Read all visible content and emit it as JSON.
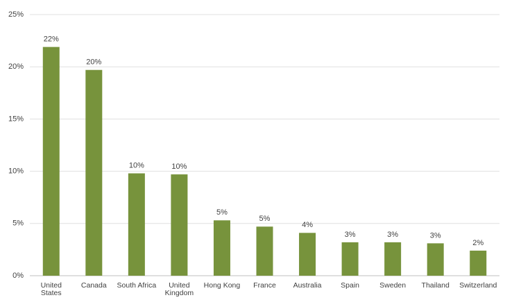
{
  "chart_data": {
    "type": "bar",
    "categories": [
      "United States",
      "Canada",
      "South Africa",
      "United Kingdom",
      "Hong Kong",
      "France",
      "Australia",
      "Spain",
      "Sweden",
      "Thailand",
      "Switzerland"
    ],
    "values": [
      21.9,
      19.7,
      9.8,
      9.7,
      5.3,
      4.7,
      4.1,
      3.2,
      3.2,
      3.1,
      2.4
    ],
    "value_labels": [
      "22%",
      "20%",
      "10%",
      "10%",
      "5%",
      "5%",
      "4%",
      "3%",
      "3%",
      "3%",
      "2%"
    ],
    "color": "#77933c",
    "ylim": [
      0,
      25
    ],
    "yticks": [
      {
        "value": 0,
        "label": "0%"
      },
      {
        "value": 5,
        "label": "5%"
      },
      {
        "value": 10,
        "label": "10%"
      },
      {
        "value": 15,
        "label": "15%"
      },
      {
        "value": 20,
        "label": "20%"
      },
      {
        "value": 25,
        "label": "25%"
      }
    ],
    "grid": true
  }
}
